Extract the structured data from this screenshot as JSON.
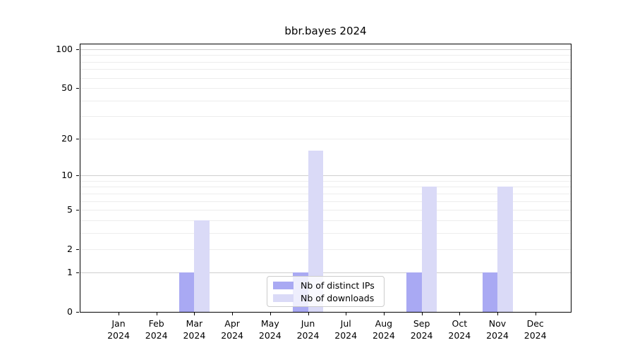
{
  "chart_data": {
    "type": "bar",
    "title": "bbr.bayes 2024",
    "y_scale": "log1p",
    "ylim": [
      0,
      112
    ],
    "grid": true,
    "y_ticks": [
      0,
      1,
      2,
      5,
      10,
      20,
      50,
      100
    ],
    "major_gridline_values": [
      1,
      10,
      100
    ],
    "minor_gridline_values": [
      2,
      3,
      4,
      5,
      6,
      7,
      8,
      9,
      20,
      30,
      40,
      50,
      60,
      70,
      80,
      90
    ],
    "categories": [
      {
        "month": "Jan",
        "year": "2024"
      },
      {
        "month": "Feb",
        "year": "2024"
      },
      {
        "month": "Mar",
        "year": "2024"
      },
      {
        "month": "Apr",
        "year": "2024"
      },
      {
        "month": "May",
        "year": "2024"
      },
      {
        "month": "Jun",
        "year": "2024"
      },
      {
        "month": "Jul",
        "year": "2024"
      },
      {
        "month": "Aug",
        "year": "2024"
      },
      {
        "month": "Sep",
        "year": "2024"
      },
      {
        "month": "Oct",
        "year": "2024"
      },
      {
        "month": "Nov",
        "year": "2024"
      },
      {
        "month": "Dec",
        "year": "2024"
      }
    ],
    "series": [
      {
        "name": "Nb of distinct IPs",
        "color": "#a9a9f3",
        "values": [
          0,
          0,
          1,
          0,
          0,
          1,
          0,
          0,
          1,
          0,
          1,
          0
        ]
      },
      {
        "name": "Nb of downloads",
        "color": "#dadaf7",
        "values": [
          0,
          0,
          4,
          0,
          0,
          16,
          0,
          0,
          8,
          0,
          8,
          0
        ]
      }
    ],
    "legend": {
      "position": "lower center"
    },
    "colors": {
      "major_grid": "#cfcfcf",
      "minor_grid": "#ededed",
      "axis": "#000000",
      "background": "#ffffff"
    }
  }
}
